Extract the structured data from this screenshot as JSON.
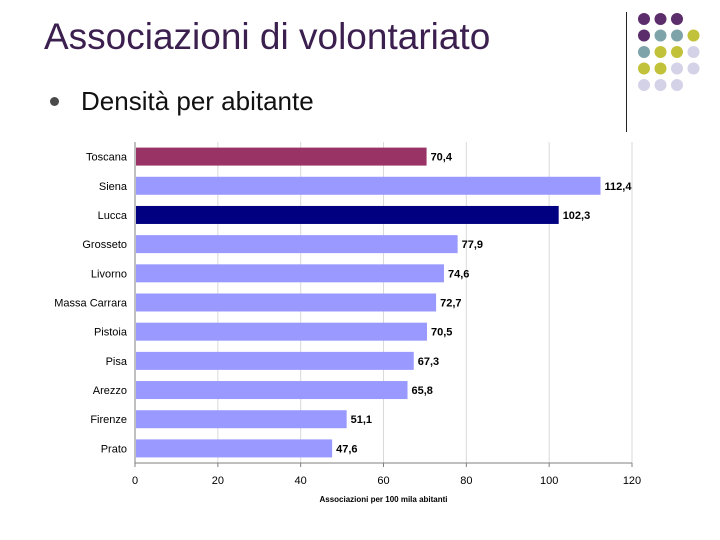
{
  "slide": {
    "title": "Associazioni di volontariato",
    "bullet": "Densità per abitante"
  },
  "colors": {
    "title": "#3b1f4f",
    "deco_purple": "#5b2e6b",
    "deco_teal": "#7ea3a8",
    "deco_olive": "#c2c23a",
    "deco_lavender": "#d4d2e6"
  },
  "chart_data": {
    "type": "bar",
    "orientation": "horizontal",
    "categories": [
      "Toscana",
      "Siena",
      "Lucca",
      "Grosseto",
      "Livorno",
      "Massa Carrara",
      "Pistoia",
      "Pisa",
      "Arezzo",
      "Firenze",
      "Prato"
    ],
    "values": [
      70.4,
      112.4,
      102.3,
      77.9,
      74.6,
      72.7,
      70.5,
      67.3,
      65.8,
      51.1,
      47.6
    ],
    "value_labels": [
      "70,4",
      "112,4",
      "102,3",
      "77,9",
      "74,6",
      "72,7",
      "70,5",
      "67,3",
      "65,8",
      "51,1",
      "47,6"
    ],
    "bar_colors": [
      "#993366",
      "#9999ff",
      "#000080",
      "#9999ff",
      "#9999ff",
      "#9999ff",
      "#9999ff",
      "#9999ff",
      "#9999ff",
      "#9999ff",
      "#9999ff"
    ],
    "xlim": [
      0,
      120
    ],
    "xticks": [
      0,
      20,
      40,
      60,
      80,
      100,
      120
    ],
    "xlabel": "Associazioni per 100 mila abitanti",
    "grid": "vertical",
    "legend": "none"
  }
}
